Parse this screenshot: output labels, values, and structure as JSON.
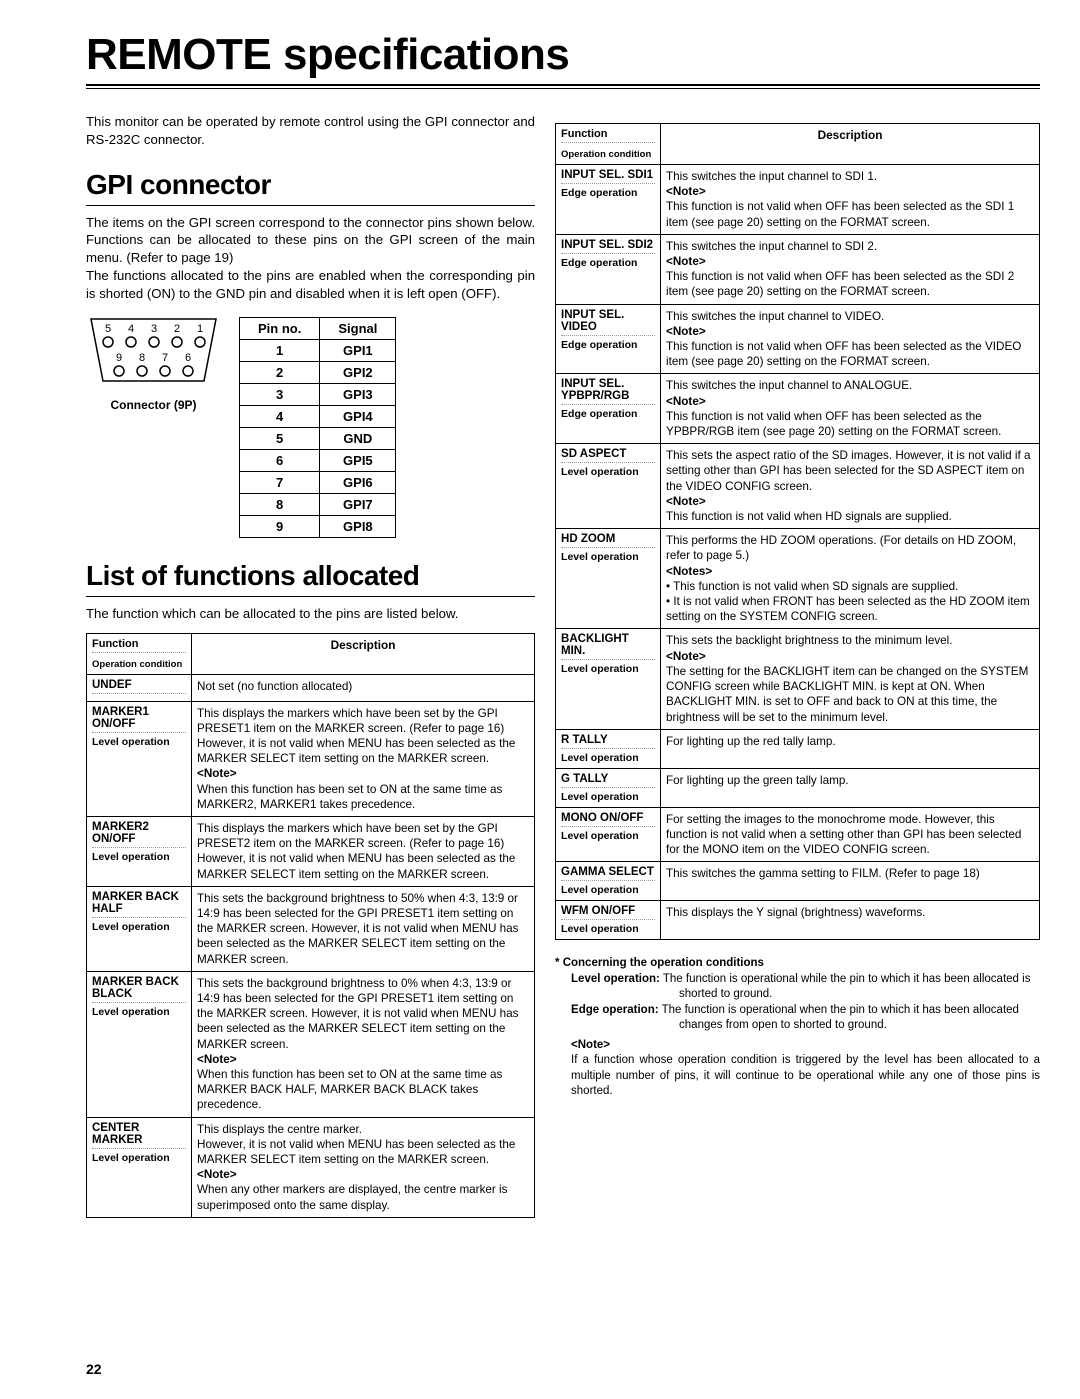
{
  "title": "REMOTE specifications",
  "intro": "This monitor can be operated by remote control using the GPI connector and RS-232C connector.",
  "gpi": {
    "heading": "GPI connector",
    "body": "The items on the GPI screen correspond to the connector pins shown below.  Functions can be allocated to these pins on the GPI screen of the main menu.  (Refer to page 19)\nThe functions allocated to the pins are enabled when the corresponding pin is shorted (ON) to the GND pin and disabled when it is left open (OFF).",
    "connector_label": "Connector (9P)",
    "pin_header": [
      "Pin no.",
      "Signal"
    ],
    "pins": [
      [
        "1",
        "GPI1"
      ],
      [
        "2",
        "GPI2"
      ],
      [
        "3",
        "GPI3"
      ],
      [
        "4",
        "GPI4"
      ],
      [
        "5",
        "GND"
      ],
      [
        "6",
        "GPI5"
      ],
      [
        "7",
        "GPI6"
      ],
      [
        "8",
        "GPI7"
      ],
      [
        "9",
        "GPI8"
      ]
    ],
    "pin_labels_top": [
      "5",
      "4",
      "3",
      "2",
      "1"
    ],
    "pin_labels_bot": [
      "9",
      "8",
      "7",
      "6"
    ]
  },
  "list": {
    "heading": "List of functions allocated",
    "body": "The function which can be allocated to the pins are listed below.",
    "header_func": "Function",
    "header_op": "Operation condition",
    "header_desc": "Description",
    "rows_left": [
      {
        "name": "UNDEF",
        "op": "",
        "desc": "Not set (no function allocated)"
      },
      {
        "name": "MARKER1 ON/OFF",
        "op": "Level operation",
        "desc": "This displays the markers which have been set by the GPI PRESET1 item on the MARKER screen.  (Refer to page 16)  However, it is not valid when MENU has been selected as the MARKER SELECT item setting on the MARKER screen.\n<Note>\nWhen this function has been set to ON at the same time as MARKER2, MARKER1 takes precedence."
      },
      {
        "name": "MARKER2 ON/OFF",
        "op": "Level operation",
        "desc": "This displays the markers which have been set by the GPI PRESET2 item on the MARKER screen.  (Refer to page 16)  However, it is not valid when MENU has been selected as the MARKER SELECT item setting on the MARKER screen."
      },
      {
        "name": "MARKER BACK HALF",
        "op": "Level operation",
        "desc": "This sets the background brightness to 50% when 4:3, 13:9 or 14:9 has been selected for the GPI PRESET1 item setting on the MARKER screen.  However, it is not valid when MENU has been selected as the MARKER SELECT item setting on the MARKER screen."
      },
      {
        "name": "MARKER BACK BLACK",
        "op": "Level operation",
        "desc": "This sets the background brightness to 0% when 4:3, 13:9 or 14:9 has been selected for the GPI PRESET1 item setting on the MARKER screen.  However, it is not valid when MENU has been selected as the MARKER SELECT item setting on the MARKER screen.\n<Note>\nWhen this function has been set to ON at the same time as MARKER BACK HALF, MARKER BACK BLACK takes precedence."
      },
      {
        "name": "CENTER MARKER",
        "op": "Level operation",
        "desc": "This displays the centre marker.\nHowever, it is not valid when MENU has been selected as the MARKER SELECT item setting on the MARKER screen.\n<Note>\nWhen any other markers are displayed, the centre marker is superimposed onto the same display."
      }
    ],
    "rows_right": [
      {
        "name": "INPUT SEL. SDI1",
        "op": "Edge operation",
        "desc": "This switches the input channel to SDI 1.\n<Note>\nThis function is not valid when OFF has been selected as the SDI 1 item (see page 20) setting on the FORMAT screen."
      },
      {
        "name": "INPUT SEL. SDI2",
        "op": "Edge operation",
        "desc": "This switches the input channel to SDI 2.\n<Note>\nThis function is not valid when OFF has been selected as the SDI 2 item (see page 20) setting on the FORMAT screen."
      },
      {
        "name": "INPUT SEL. VIDEO",
        "op": "Edge operation",
        "desc": "This switches the input channel to VIDEO.\n<Note>\nThis function is not valid when OFF has been selected as the VIDEO item (see page 20) setting on the FORMAT screen."
      },
      {
        "name": "INPUT SEL. YPBPR/RGB",
        "op": "Edge operation",
        "desc": "This switches the input channel to ANALOGUE.\n<Note>\nThis function is not valid when OFF has been selected as the YPBPR/RGB item (see page 20) setting on the FORMAT screen."
      },
      {
        "name": "SD ASPECT",
        "op": "Level operation",
        "desc": "This sets the aspect ratio of the SD images.  However, it is not valid if a setting other than GPI has been selected for the SD ASPECT item on the VIDEO CONFIG screen.\n<Note>\nThis function is not valid when HD signals are supplied."
      },
      {
        "name": "HD ZOOM",
        "op": "Level operation",
        "desc": "This performs the HD ZOOM operations.  (For details on HD ZOOM, refer to page 5.)\n<Notes>\n• This function is not valid when SD signals are supplied.\n• It is not valid when FRONT has been selected as the HD ZOOM item setting on the SYSTEM CONFIG screen."
      },
      {
        "name": "BACKLIGHT MIN.",
        "op": "Level operation",
        "desc": "This sets the backlight brightness to the minimum level.\n<Note>\nThe setting for the BACKLIGHT item can be changed on the SYSTEM CONFIG screen while BACKLIGHT MIN. is kept at ON.  When BACKLIGHT MIN. is set to OFF and back to ON at this time, the brightness will be set to the minimum level."
      },
      {
        "name": "R TALLY",
        "op": "Level operation",
        "desc": "For lighting up the red tally lamp."
      },
      {
        "name": "G TALLY",
        "op": "Level operation",
        "desc": "For lighting up the green tally lamp."
      },
      {
        "name": "MONO ON/OFF",
        "op": "Level operation",
        "desc": "For setting the images to the monochrome mode.  However, this function is not valid when a setting other than GPI has been selected for the MONO item on the VIDEO CONFIG screen."
      },
      {
        "name": "GAMMA SELECT",
        "op": "Level operation",
        "desc": "This switches the gamma setting to FILM.  (Refer to page 18)"
      },
      {
        "name": "WFM ON/OFF",
        "op": "Level operation",
        "desc": "This displays the Y signal (brightness) waveforms."
      }
    ]
  },
  "notes": {
    "heading": "* Concerning the operation conditions",
    "level": "Level operation:",
    "level_text": "The function is operational while the pin to which it has been allocated is shorted to ground.",
    "edge": "Edge operation:",
    "edge_text": "The function is operational when the pin to which it has been allocated changes from open to shorted to ground.",
    "note_heading": "<Note>",
    "note_text": "If a function whose operation condition is triggered by the level has been allocated to a multiple number of pins, it will continue to be operational while any one of those pins is shorted."
  },
  "page_number": "22"
}
